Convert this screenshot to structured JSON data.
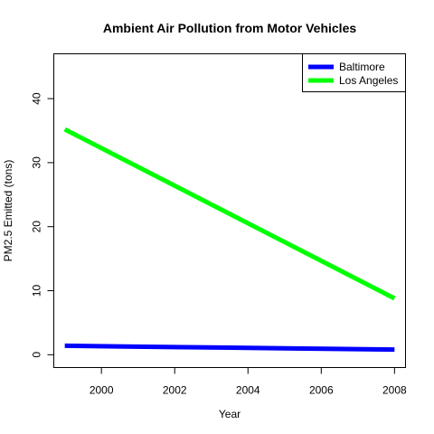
{
  "chart_data": {
    "type": "line",
    "title": "Ambient Air Pollution from Motor Vehicles",
    "xlabel": "Year",
    "ylabel": "PM2.5 Emitted (tons)",
    "xlim": [
      1998.7,
      2008.3
    ],
    "ylim": [
      -2,
      47
    ],
    "x_ticks": [
      2000,
      2002,
      2004,
      2006,
      2008
    ],
    "y_ticks": [
      0,
      10,
      20,
      30,
      40
    ],
    "grid": false,
    "legend_position": "top-right",
    "series": [
      {
        "name": "Baltimore",
        "color": "#0000ff",
        "x": [
          1999,
          2002,
          2005,
          2008
        ],
        "y": [
          1.4,
          1.2,
          1.0,
          0.8
        ]
      },
      {
        "name": "Los Angeles",
        "color": "#00ff00",
        "x": [
          1999,
          2008
        ],
        "y": [
          35.2,
          8.8
        ]
      }
    ]
  }
}
